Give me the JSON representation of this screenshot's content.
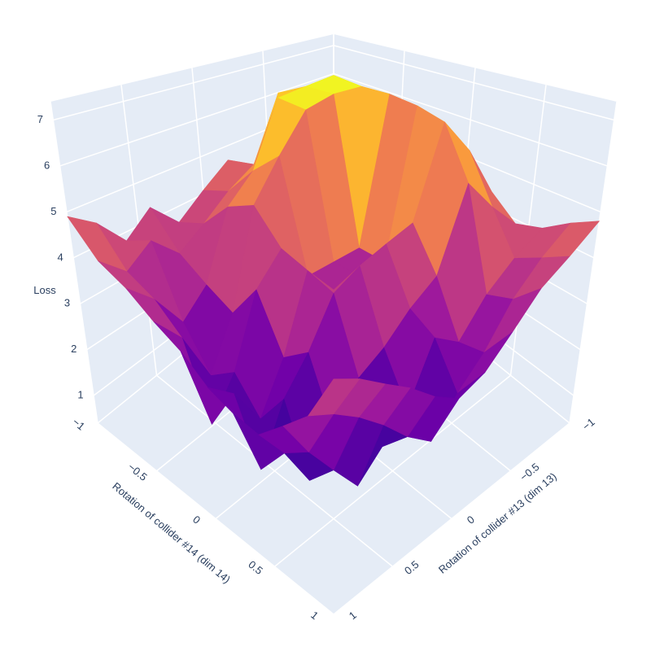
{
  "chart_data": {
    "type": "surface",
    "xaxis_title": "Rotation of collider #14 (dim 14)",
    "yaxis_title": "Rotation of collider #13 (dim 13)",
    "zaxis_title": "Loss",
    "x": [
      -1,
      -0.8,
      -0.6,
      -0.4,
      -0.2,
      0,
      0.2,
      0.4,
      0.6,
      0.8,
      1
    ],
    "y": [
      -1,
      -0.8,
      -0.6,
      -0.4,
      -0.2,
      0,
      0.2,
      0.4,
      0.6,
      0.8,
      1
    ],
    "z": [
      [
        4.2,
        4.8,
        4.5,
        3.9,
        4.6,
        4.1,
        3.6,
        4.3,
        3.8,
        4.5,
        4.9
      ],
      [
        4.5,
        5.1,
        6.2,
        6.5,
        4.8,
        4.4,
        3.9,
        3.5,
        4.1,
        3.7,
        4.2
      ],
      [
        4.8,
        6.0,
        7.0,
        6.9,
        6.8,
        5.2,
        4.6,
        3.1,
        2.6,
        3.4,
        3.9
      ],
      [
        4.3,
        6.4,
        6.9,
        6.9,
        6.7,
        5.8,
        4.9,
        2.8,
        1.8,
        2.9,
        3.5
      ],
      [
        4.6,
        5.5,
        6.9,
        3.3,
        3.3,
        3.3,
        4.2,
        3.6,
        2.2,
        1.5,
        3.2
      ],
      [
        4.9,
        5.9,
        6.8,
        3.3,
        3.3,
        3.3,
        4.0,
        2.5,
        1.6,
        2.4,
        2.8
      ],
      [
        4.4,
        5.7,
        6.6,
        4.5,
        4.3,
        4.1,
        3.8,
        2.9,
        2.3,
        1.3,
        2.6
      ],
      [
        3.9,
        4.6,
        5.4,
        3.6,
        3.2,
        2.7,
        2.4,
        1.7,
        1.1,
        1.9,
        2.5
      ],
      [
        4.1,
        3.7,
        3.2,
        2.5,
        2.9,
        1.8,
        1.4,
        1.0,
        1.6,
        2.2,
        2.9
      ],
      [
        4.5,
        4.0,
        3.4,
        2.6,
        2.1,
        1.5,
        1.9,
        2.4,
        2.8,
        3.1,
        3.3
      ],
      [
        4.8,
        4.3,
        3.9,
        3.3,
        2.8,
        2.6,
        2.9,
        3.3,
        3.6,
        3.9,
        4.1
      ]
    ],
    "xlim": [
      -1,
      1
    ],
    "ylim": [
      -1,
      1
    ],
    "zlim": [
      0.4,
      7.4
    ],
    "xticks": [
      {
        "value": -1,
        "label": "−1"
      },
      {
        "value": -0.5,
        "label": "−0.5"
      },
      0,
      0.5,
      1
    ],
    "yticks": [
      {
        "value": -1,
        "label": "−1"
      },
      {
        "value": -0.5,
        "label": "−0.5"
      },
      0,
      0.5,
      1
    ],
    "zticks": [
      1,
      2,
      3,
      4,
      5,
      6,
      7
    ],
    "colorscale": [
      "#0d0887",
      "#46039f",
      "#7201a8",
      "#9c179e",
      "#bd3786",
      "#d8576b",
      "#ed7953",
      "#fb9f3a",
      "#fdca26",
      "#f0f921"
    ],
    "grid": true
  }
}
